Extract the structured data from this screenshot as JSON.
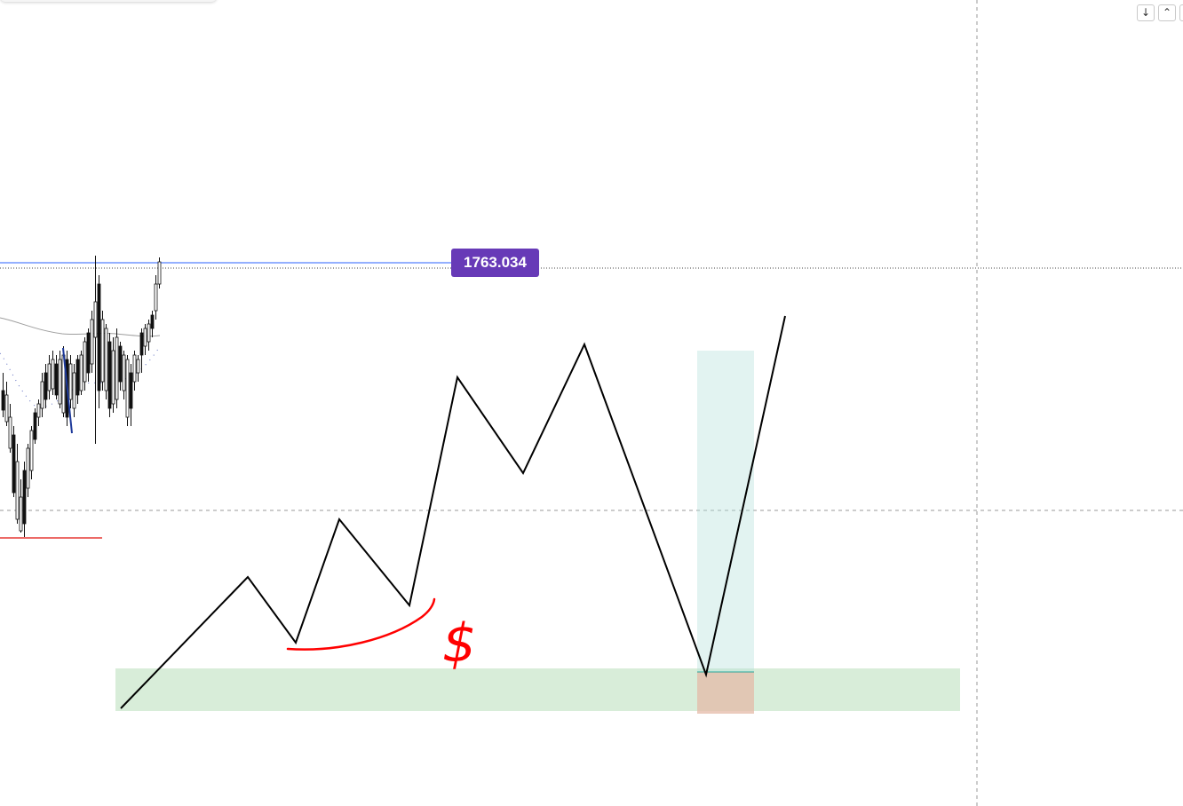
{
  "chart": {
    "price_label": "1763.034",
    "annotation_symbol": "$",
    "colors": {
      "price_label_bg": "#673ab7",
      "price_line": "#2962ff",
      "support_zone": "#c8e6c9",
      "target_zone": "#b2dfdb",
      "stop_zone": "#d7a98f",
      "annotation": "#ff0000",
      "zigzag": "#000000"
    }
  },
  "controls": {
    "scroll_down_icon": "↓",
    "collapse_icon": "⌃"
  }
}
